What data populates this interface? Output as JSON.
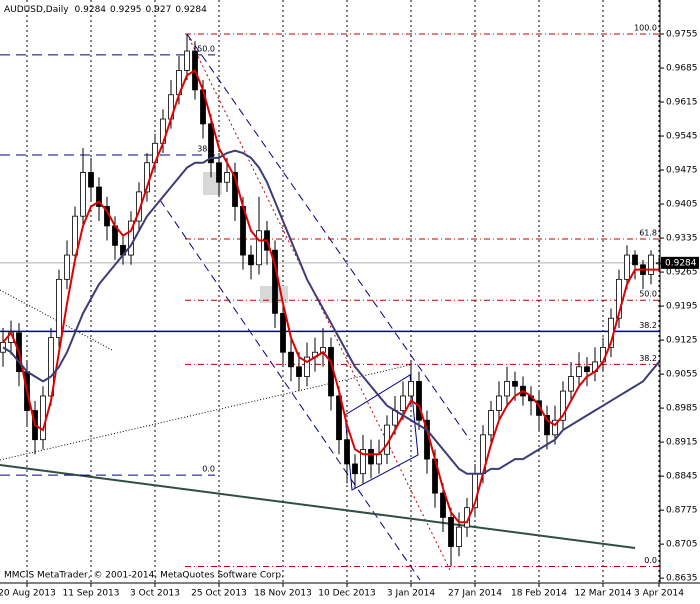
{
  "chart_data": {
    "type": "candlestick",
    "title": "AUDUSD,Daily",
    "footer": "MMCIS MetaTrader, © 2001-2014, MetaQuotes Software Corp.",
    "categories": [
      null,
      null,
      null,
      "20 Aug 2013",
      null,
      null,
      null,
      null,
      null,
      null,
      null,
      "11 Sep 2013",
      null,
      null,
      null,
      null,
      null,
      null,
      null,
      "3 Oct 2013",
      null,
      null,
      null,
      null,
      null,
      null,
      null,
      "25 Oct 2013",
      null,
      null,
      null,
      null,
      null,
      null,
      null,
      "18 Nov 2013",
      null,
      null,
      null,
      null,
      null,
      null,
      null,
      "10 Dec 2013",
      null,
      null,
      null,
      null,
      null,
      null,
      null,
      "3 Jan 2014",
      null,
      null,
      null,
      null,
      null,
      null,
      null,
      "27 Jan 2014",
      null,
      null,
      null,
      null,
      null,
      null,
      null,
      "18 Feb 2014",
      null,
      null,
      null,
      null,
      null,
      null,
      null,
      "12 Mar 2014",
      null,
      null,
      null,
      null,
      null,
      null,
      "3 Apr 2014"
    ],
    "open": [
      0.91,
      0.912,
      0.914,
      0.906,
      0.898,
      0.892,
      0.901,
      0.913,
      0.925,
      0.93,
      0.938,
      0.947,
      0.944,
      0.94,
      0.936,
      0.932,
      0.93,
      0.937,
      0.943,
      0.949,
      0.953,
      0.958,
      0.963,
      0.968,
      0.972,
      0.964,
      0.957,
      0.949,
      0.945,
      0.947,
      0.94,
      0.93,
      0.928,
      0.935,
      0.931,
      0.918,
      0.91,
      0.907,
      0.905,
      0.909,
      0.91,
      0.911,
      0.901,
      0.892,
      0.887,
      0.885,
      0.89,
      0.887,
      0.889,
      0.895,
      0.898,
      0.901,
      0.904,
      0.896,
      0.888,
      0.881,
      0.876,
      0.87,
      0.874,
      0.878,
      0.885,
      0.893,
      0.898,
      0.901,
      0.904,
      0.903,
      0.901,
      0.9,
      0.897,
      0.893,
      0.896,
      0.902,
      0.905,
      0.907,
      0.906,
      0.908,
      0.911,
      0.917,
      0.925,
      0.93,
      0.928,
      0.926,
      0.9284
    ],
    "high": [
      0.915,
      0.9165,
      0.916,
      0.908,
      0.9,
      0.903,
      0.915,
      0.927,
      0.933,
      0.94,
      0.952,
      0.95,
      0.946,
      0.942,
      0.938,
      0.934,
      0.939,
      0.945,
      0.951,
      0.955,
      0.96,
      0.966,
      0.971,
      0.9755,
      0.974,
      0.966,
      0.959,
      0.951,
      0.95,
      0.949,
      0.942,
      0.932,
      0.942,
      0.937,
      0.933,
      0.92,
      0.913,
      0.91,
      0.912,
      0.913,
      0.915,
      0.913,
      0.903,
      0.894,
      0.889,
      0.893,
      0.892,
      0.892,
      0.897,
      0.901,
      0.904,
      0.908,
      0.906,
      0.898,
      0.89,
      0.883,
      0.878,
      0.877,
      0.88,
      0.887,
      0.895,
      0.9,
      0.904,
      0.907,
      0.906,
      0.905,
      0.903,
      0.902,
      0.899,
      0.899,
      0.904,
      0.908,
      0.91,
      0.909,
      0.911,
      0.913,
      0.919,
      0.927,
      0.932,
      0.931,
      0.929,
      0.931,
      0.9295
    ],
    "low": [
      0.907,
      0.9095,
      0.903,
      0.895,
      0.889,
      0.89,
      0.899,
      0.911,
      0.923,
      0.928,
      0.936,
      0.941,
      0.937,
      0.933,
      0.929,
      0.928,
      0.928,
      0.935,
      0.941,
      0.947,
      0.951,
      0.956,
      0.961,
      0.966,
      0.962,
      0.954,
      0.946,
      0.942,
      0.943,
      0.937,
      0.927,
      0.925,
      0.926,
      0.928,
      0.915,
      0.907,
      0.904,
      0.902,
      0.903,
      0.906,
      0.907,
      0.898,
      0.889,
      0.883,
      0.882,
      0.883,
      0.884,
      0.885,
      0.887,
      0.893,
      0.896,
      0.899,
      0.894,
      0.885,
      0.878,
      0.873,
      0.866,
      0.868,
      0.872,
      0.876,
      0.883,
      0.891,
      0.896,
      0.899,
      0.9,
      0.899,
      0.897,
      0.894,
      0.89,
      0.891,
      0.894,
      0.9,
      0.903,
      0.903,
      0.904,
      0.906,
      0.909,
      0.915,
      0.923,
      0.925,
      0.923,
      0.924,
      0.927
    ],
    "close": [
      0.912,
      0.914,
      0.906,
      0.898,
      0.892,
      0.901,
      0.913,
      0.925,
      0.93,
      0.938,
      0.947,
      0.944,
      0.94,
      0.936,
      0.932,
      0.93,
      0.937,
      0.943,
      0.949,
      0.953,
      0.958,
      0.963,
      0.968,
      0.972,
      0.964,
      0.957,
      0.949,
      0.945,
      0.947,
      0.94,
      0.93,
      0.928,
      0.935,
      0.931,
      0.918,
      0.91,
      0.907,
      0.905,
      0.909,
      0.91,
      0.911,
      0.901,
      0.892,
      0.887,
      0.885,
      0.89,
      0.887,
      0.889,
      0.895,
      0.898,
      0.901,
      0.904,
      0.896,
      0.888,
      0.881,
      0.876,
      0.87,
      0.874,
      0.878,
      0.885,
      0.893,
      0.898,
      0.901,
      0.904,
      0.903,
      0.901,
      0.9,
      0.897,
      0.893,
      0.896,
      0.902,
      0.905,
      0.907,
      0.906,
      0.908,
      0.911,
      0.917,
      0.925,
      0.93,
      0.928,
      0.926,
      0.93,
      0.9284
    ],
    "up_color": "#ffffff",
    "down_color": "#000000",
    "overlays": [
      {
        "color": "#e00000",
        "values": [
          0.912,
          0.914,
          0.91,
          0.902,
          0.895,
          0.894,
          0.9,
          0.91,
          0.92,
          0.929,
          0.936,
          0.94,
          0.941,
          0.939,
          0.936,
          0.934,
          0.935,
          0.939,
          0.944,
          0.949,
          0.953,
          0.958,
          0.963,
          0.967,
          0.968,
          0.964,
          0.958,
          0.952,
          0.949,
          0.946,
          0.94,
          0.935,
          0.933,
          0.933,
          0.928,
          0.92,
          0.913,
          0.909,
          0.908,
          0.909,
          0.91,
          0.908,
          0.902,
          0.895,
          0.89,
          0.889,
          0.889,
          0.889,
          0.891,
          0.894,
          0.897,
          0.9,
          0.899,
          0.894,
          0.888,
          0.882,
          0.877,
          0.875,
          0.875,
          0.879,
          0.885,
          0.891,
          0.896,
          0.899,
          0.901,
          0.902,
          0.901,
          0.899,
          0.896,
          0.895,
          0.897,
          0.9,
          0.903,
          0.905,
          0.906,
          0.908,
          0.912,
          0.918,
          0.924,
          0.927,
          0.927,
          0.927,
          0.927
        ]
      },
      {
        "color": "#3c3c78",
        "values": [
          0.911,
          0.91,
          0.908,
          0.906,
          0.905,
          0.904,
          0.905,
          0.907,
          0.91,
          0.914,
          0.918,
          0.921,
          0.924,
          0.926,
          0.928,
          0.93,
          0.932,
          0.935,
          0.938,
          0.94,
          0.942,
          0.944,
          0.946,
          0.948,
          0.949,
          0.949,
          0.95,
          0.95,
          0.951,
          0.9515,
          0.951,
          0.95,
          0.948,
          0.945,
          0.941,
          0.937,
          0.933,
          0.929,
          0.925,
          0.922,
          0.919,
          0.916,
          0.913,
          0.91,
          0.907,
          0.905,
          0.903,
          0.901,
          0.899,
          0.898,
          0.897,
          0.896,
          0.895,
          0.894,
          0.892,
          0.89,
          0.888,
          0.886,
          0.885,
          0.885,
          0.885,
          0.886,
          0.886,
          0.887,
          0.888,
          0.888,
          0.889,
          0.89,
          0.891,
          0.892,
          0.894,
          0.895,
          0.896,
          0.897,
          0.898,
          0.899,
          0.9,
          0.901,
          0.902,
          0.903,
          0.904,
          0.906,
          0.908
        ]
      }
    ],
    "levels": [
      {
        "label": "100.0",
        "value": 0.9755,
        "color": "#c00000",
        "style": "dashdot"
      },
      {
        "label": "61.8",
        "value": 0.9333,
        "color": "#c00000",
        "style": "dashdot"
      },
      {
        "label": "50.0",
        "value": 0.9207,
        "color": "#c00000",
        "style": "dashdot"
      },
      {
        "label": "38.2",
        "value": 0.9075,
        "color": "#c00000",
        "style": "dashdot"
      },
      {
        "label": "0.0",
        "value": 0.8659,
        "color": "#c00000",
        "style": "dashdot"
      },
      {
        "label": "50.0",
        "value": 0.9712,
        "color": "#00008b",
        "style": "dashed"
      },
      {
        "label": "38.2",
        "value": 0.9506,
        "color": "#00008b",
        "style": "dashed"
      },
      {
        "label": "0.0",
        "value": 0.8847,
        "color": "#00008b",
        "style": "dashed"
      },
      {
        "label": "38.2",
        "value": 0.9143,
        "color": "#0000aa",
        "style": "solid"
      }
    ],
    "ylim": [
      0.8625,
      0.9825
    ],
    "yticks": [
      0.9755,
      0.9685,
      0.9615,
      0.9545,
      0.9475,
      0.9405,
      0.9335,
      0.9265,
      0.9195,
      0.9125,
      0.9055,
      0.8985,
      0.8915,
      0.8845,
      0.8775,
      0.8705,
      0.8635
    ],
    "grid": true
  }
}
